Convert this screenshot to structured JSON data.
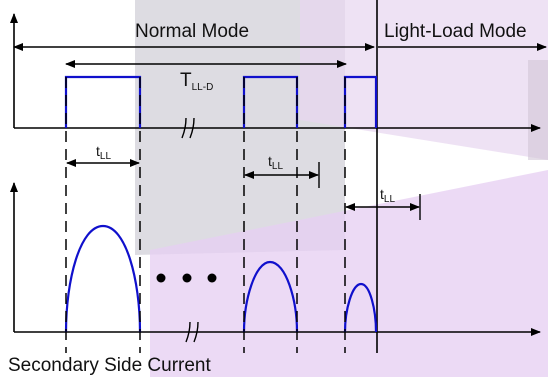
{
  "labels": {
    "normal_mode": "Normal Mode",
    "light_load_mode": "Light-Load Mode",
    "t_lld_main": "T",
    "t_lld_sub": "LL-D",
    "t_ll_main": "t",
    "t_ll_sub": "LL",
    "secondary_current": "Secondary Side Current"
  },
  "colors": {
    "signal": "#1010cc",
    "axis": "#000000",
    "band_gray": "#b8b8c4",
    "band_purple": "#d8b8e8"
  }
}
